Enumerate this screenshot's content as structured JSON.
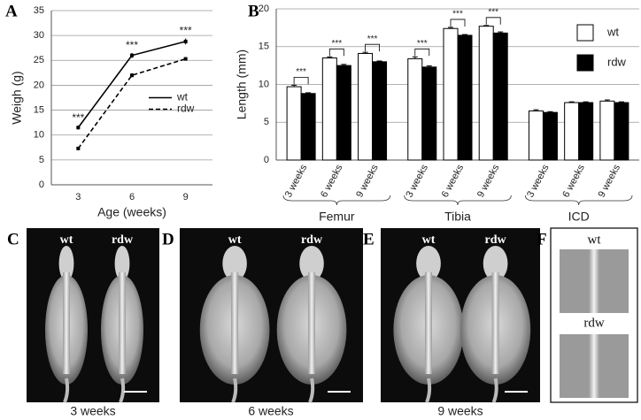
{
  "chart_data": [
    {
      "type": "line",
      "label": "A",
      "x_label": "Age (weeks)",
      "y_label": "Weigh (g)",
      "categories": [
        "3",
        "6",
        "9"
      ],
      "series": [
        {
          "name": "wt",
          "color": "#000000",
          "style": "solid",
          "values": [
            11.5,
            26.0,
            28.8
          ],
          "errors": [
            0.4,
            0.5,
            0.6
          ]
        },
        {
          "name": "rdw",
          "color": "#000000",
          "style": "dashed",
          "values": [
            7.3,
            22.0,
            25.3
          ],
          "errors": [
            0.3,
            0.4,
            0.3
          ]
        }
      ],
      "significance": [
        "***",
        "***",
        "***"
      ],
      "ylim": [
        0,
        35
      ],
      "yticks": [
        0,
        5,
        10,
        15,
        20,
        25,
        30,
        35
      ],
      "grid": true,
      "legend": "center-right"
    },
    {
      "type": "bar",
      "label": "B",
      "y_label": "Length (mm)",
      "categories": [
        "3 weeks",
        "6 weeks",
        "9 weeks",
        "3 weeks",
        "6 weeks",
        "9 weeks",
        "3 weeks",
        "6 weeks",
        "9 weeks"
      ],
      "groups": [
        "Femur",
        "Tibia",
        "ICD"
      ],
      "series": [
        {
          "name": "wt",
          "color": "#ffffff",
          "values": [
            9.7,
            13.5,
            14.1,
            13.4,
            17.4,
            17.7,
            6.5,
            7.6,
            7.8
          ],
          "errors": [
            0.2,
            0.15,
            0.15,
            0.25,
            0.15,
            0.1,
            0.15,
            0.1,
            0.15
          ]
        },
        {
          "name": "rdw",
          "color": "#000000",
          "values": [
            8.8,
            12.5,
            13.0,
            12.3,
            16.5,
            16.8,
            6.3,
            7.6,
            7.6
          ],
          "errors": [
            0.1,
            0.15,
            0.1,
            0.15,
            0.1,
            0.15,
            0.1,
            0.1,
            0.1
          ]
        }
      ],
      "significance": [
        "***",
        "***",
        "***",
        "***",
        "***",
        "***",
        null,
        null,
        null
      ],
      "ylim": [
        0,
        20
      ],
      "yticks": [
        0,
        5,
        10,
        15,
        20
      ],
      "grid": true,
      "legend": "top-right"
    }
  ],
  "image_panels": [
    {
      "letter": "C",
      "labels": [
        "wt",
        "rdw"
      ],
      "caption": "3 weeks"
    },
    {
      "letter": "D",
      "labels": [
        "wt",
        "rdw"
      ],
      "caption": "6 weeks"
    },
    {
      "letter": "E",
      "labels": [
        "wt",
        "rdw"
      ],
      "caption": "9 weeks"
    },
    {
      "letter": "F",
      "labels": [
        "wt",
        "rdw"
      ]
    }
  ]
}
